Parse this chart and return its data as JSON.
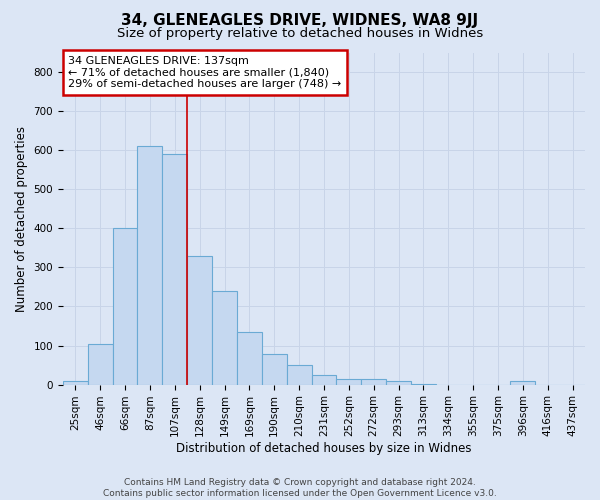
{
  "title_line1": "34, GLENEAGLES DRIVE, WIDNES, WA8 9JJ",
  "title_line2": "Size of property relative to detached houses in Widnes",
  "xlabel": "Distribution of detached houses by size in Widnes",
  "ylabel": "Number of detached properties",
  "footer_line1": "Contains HM Land Registry data © Crown copyright and database right 2024.",
  "footer_line2": "Contains public sector information licensed under the Open Government Licence v3.0.",
  "bar_labels": [
    "25sqm",
    "46sqm",
    "66sqm",
    "87sqm",
    "107sqm",
    "128sqm",
    "149sqm",
    "169sqm",
    "190sqm",
    "210sqm",
    "231sqm",
    "252sqm",
    "272sqm",
    "293sqm",
    "313sqm",
    "334sqm",
    "355sqm",
    "375sqm",
    "396sqm",
    "416sqm",
    "437sqm"
  ],
  "bar_values": [
    8,
    105,
    402,
    611,
    591,
    330,
    240,
    134,
    78,
    50,
    25,
    15,
    15,
    8,
    2,
    0,
    0,
    0,
    8,
    0,
    0
  ],
  "bar_color": "#c5d8f0",
  "bar_edge_color": "#6aaad4",
  "annotation_text": "34 GLENEAGLES DRIVE: 137sqm\n← 71% of detached houses are smaller (1,840)\n29% of semi-detached houses are larger (748) →",
  "annotation_box_facecolor": "white",
  "annotation_box_edgecolor": "#cc0000",
  "vline_x_index": 5,
  "vline_color": "#cc0000",
  "ylim": [
    0,
    850
  ],
  "yticks": [
    0,
    100,
    200,
    300,
    400,
    500,
    600,
    700,
    800
  ],
  "grid_color": "#c8d4e8",
  "bg_color": "#dce6f5",
  "plot_bg_color": "#dce6f5",
  "title_fontsize": 11,
  "subtitle_fontsize": 9.5,
  "axis_label_fontsize": 8.5,
  "tick_fontsize": 7.5,
  "annotation_fontsize": 8,
  "footer_fontsize": 6.5
}
